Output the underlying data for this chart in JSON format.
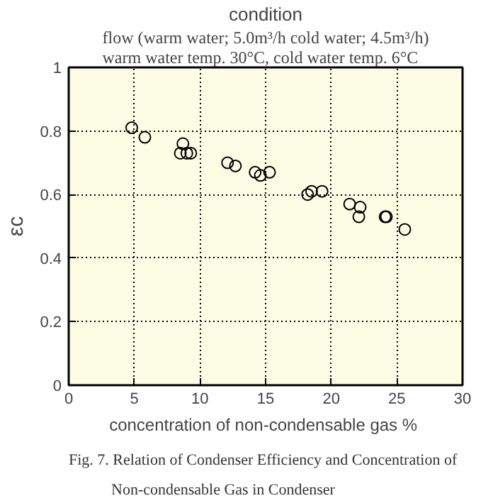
{
  "chart_data": {
    "type": "scatter",
    "title": "condition",
    "subtitle": "flow (warm water; 5.0m³/h cold water; 4.5m³/h)\nwarm water temp. 30°C, cold water temp. 6°C",
    "xlabel": "concentration of non-condensable gas  %",
    "ylabel": "εc",
    "x": [
      4.8,
      5.8,
      8.7,
      8.5,
      9.0,
      9.3,
      12.1,
      12.7,
      14.2,
      14.6,
      15.3,
      18.2,
      18.5,
      19.3,
      21.4,
      22.2,
      22.1,
      24.1,
      24.2,
      25.6
    ],
    "series": [
      {
        "color": "#000000",
        "values": [
          0.81,
          0.78,
          0.76,
          0.73,
          0.73,
          0.73,
          0.7,
          0.69,
          0.67,
          0.66,
          0.67,
          0.6,
          0.61,
          0.61,
          0.57,
          0.56,
          0.53,
          0.53,
          0.53,
          0.49
        ]
      }
    ],
    "xlim": [
      0,
      30
    ],
    "ylim": [
      0,
      1
    ],
    "xticks": [
      0,
      5,
      10,
      15,
      20,
      25,
      30
    ],
    "yticks": [
      0,
      0.2,
      0.4,
      0.6,
      0.8,
      1
    ],
    "grid": true,
    "marker": "circle",
    "annotations": [
      "Fig. 7. Relation of Condenser Efficiency and Concentration of Non-condensable Gas in Condenser"
    ]
  }
}
